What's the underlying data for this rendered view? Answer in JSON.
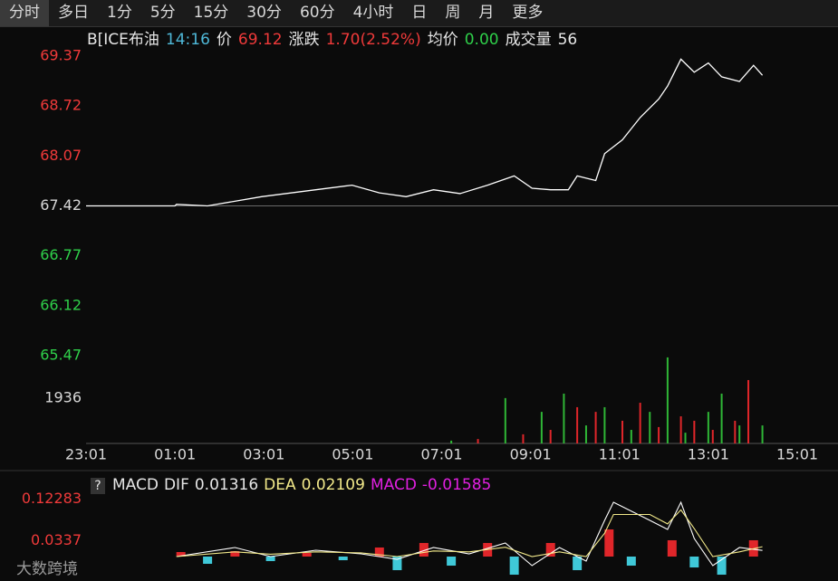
{
  "tabs": [
    "分时",
    "多日",
    "1分",
    "5分",
    "15分",
    "30分",
    "60分",
    "4小时",
    "日",
    "周",
    "月",
    "更多"
  ],
  "header": {
    "symbol": "B[ICE布油",
    "time": "14:16",
    "price_label": "价",
    "price": "69.12",
    "change_label": "涨跌",
    "change": "1.70(2.52%)",
    "avg_label": "均价",
    "avg": "0.00",
    "volume_label": "成交量",
    "volume": "56"
  },
  "watermark": "大数跨境",
  "chart_data": [
    {
      "type": "line",
      "color": "#ffffff",
      "base": 67.42,
      "xlim": [
        0,
        960
      ],
      "ylim": [
        65.47,
        69.37
      ],
      "yticks": [
        69.37,
        68.72,
        68.07,
        67.42,
        66.77,
        66.12,
        65.47
      ],
      "x": [
        0,
        120,
        122,
        164,
        237,
        310,
        359,
        396,
        432,
        469,
        505,
        542,
        578,
        602,
        627,
        651,
        663,
        688,
        700,
        724,
        748,
        773,
        785,
        803,
        821,
        840,
        858,
        882,
        901,
        913
      ],
      "values": [
        67.42,
        67.42,
        67.44,
        67.42,
        67.54,
        67.63,
        67.69,
        67.59,
        67.54,
        67.63,
        67.58,
        67.69,
        67.81,
        67.65,
        67.63,
        67.63,
        67.81,
        67.75,
        68.1,
        68.28,
        68.57,
        68.81,
        68.98,
        69.33,
        69.16,
        69.28,
        69.1,
        69.04,
        69.25,
        69.12
      ]
    },
    {
      "type": "bar",
      "xlim": [
        0,
        960
      ],
      "ylim": [
        0,
        3870
      ],
      "yticks": [
        1936
      ],
      "xticks": [
        {
          "value": 0,
          "label": "23:01"
        },
        {
          "value": 120,
          "label": "01:01"
        },
        {
          "value": 240,
          "label": "03:01"
        },
        {
          "value": 360,
          "label": "05:01"
        },
        {
          "value": 480,
          "label": "07:01"
        },
        {
          "value": 600,
          "label": "09:01"
        },
        {
          "value": 720,
          "label": "11:01"
        },
        {
          "value": 840,
          "label": "13:01"
        },
        {
          "value": 960,
          "label": "15:01"
        }
      ],
      "x": [
        493,
        529,
        566,
        590,
        615,
        627,
        645,
        663,
        675,
        688,
        700,
        724,
        736,
        748,
        761,
        773,
        785,
        803,
        809,
        821,
        840,
        846,
        858,
        876,
        882,
        894,
        913
      ],
      "values": [
        120,
        190,
        1940,
        390,
        1350,
        580,
        2130,
        1550,
        770,
        1350,
        1550,
        970,
        580,
        1740,
        1350,
        700,
        3680,
        1160,
        460,
        970,
        1350,
        580,
        2130,
        970,
        770,
        2710,
        770
      ],
      "colors": [
        "#2fb636",
        "#e0262a",
        "#2fb636",
        "#e0262a",
        "#2fb636",
        "#e0262a",
        "#2fb636",
        "#e0262a",
        "#2fb636",
        "#e0262a",
        "#2fb636",
        "#e0262a",
        "#2fb636",
        "#e0262a",
        "#2fb636",
        "#e0262a",
        "#2fb636",
        "#e0262a",
        "#2fb636",
        "#e0262a",
        "#2fb636",
        "#e0262a",
        "#2fb636",
        "#e0262a",
        "#2fb636",
        "#e0262a",
        "#2fb636"
      ]
    },
    {
      "type": "macd",
      "indicator": "MACD",
      "help": "?",
      "xlim": [
        0,
        960
      ],
      "ylim": [
        -0.0523,
        0.1298
      ],
      "yticks": [
        0.12283,
        0.0337
      ],
      "series": [
        {
          "name": "DIF",
          "color": "#ffffff",
          "latest": 0.01316,
          "x": [
            122,
            201,
            249,
            310,
            371,
            420,
            469,
            517,
            566,
            602,
            639,
            675,
            700,
            712,
            761,
            785,
            803,
            821,
            846,
            882,
            913
          ],
          "values": [
            0,
            0.0194,
            0,
            0.0136,
            0.0058,
            -0.0058,
            0.0194,
            0.0058,
            0.0291,
            -0.0194,
            0.0194,
            -0.0097,
            0.0775,
            0.1163,
            0.0775,
            0.0581,
            0.1163,
            0.0388,
            -0.0194,
            0.0194,
            0.01316
          ]
        },
        {
          "name": "DEA",
          "color": "#f2e98a",
          "latest": 0.02109,
          "x": [
            122,
            201,
            249,
            310,
            371,
            420,
            469,
            517,
            566,
            602,
            639,
            675,
            700,
            712,
            761,
            785,
            803,
            821,
            846,
            882,
            913
          ],
          "values": [
            0,
            0.01,
            0.005,
            0.01,
            0.008,
            0,
            0.012,
            0.01,
            0.02,
            0,
            0.01,
            0,
            0.05,
            0.09,
            0.09,
            0.07,
            0.1,
            0.06,
            0,
            0.01,
            0.02109
          ]
        }
      ],
      "histogram": {
        "name": "MACD",
        "color": "#e020e0",
        "up_color": "#e0262a",
        "down_color": "#3fc8d8",
        "latest": -0.01585,
        "x": [
          128,
          164,
          201,
          249,
          298,
          347,
          396,
          420,
          456,
          493,
          542,
          578,
          627,
          663,
          706,
          736,
          791,
          821,
          858,
          901
        ],
        "values": [
          0.0097,
          -0.0155,
          0.0116,
          -0.0097,
          0.0078,
          -0.0078,
          0.0194,
          -0.0291,
          0.0291,
          -0.0194,
          0.0291,
          -0.0388,
          0.0291,
          -0.0291,
          0.0581,
          -0.0194,
          0.0349,
          -0.0233,
          -0.0388,
          0.0349
        ]
      }
    }
  ]
}
